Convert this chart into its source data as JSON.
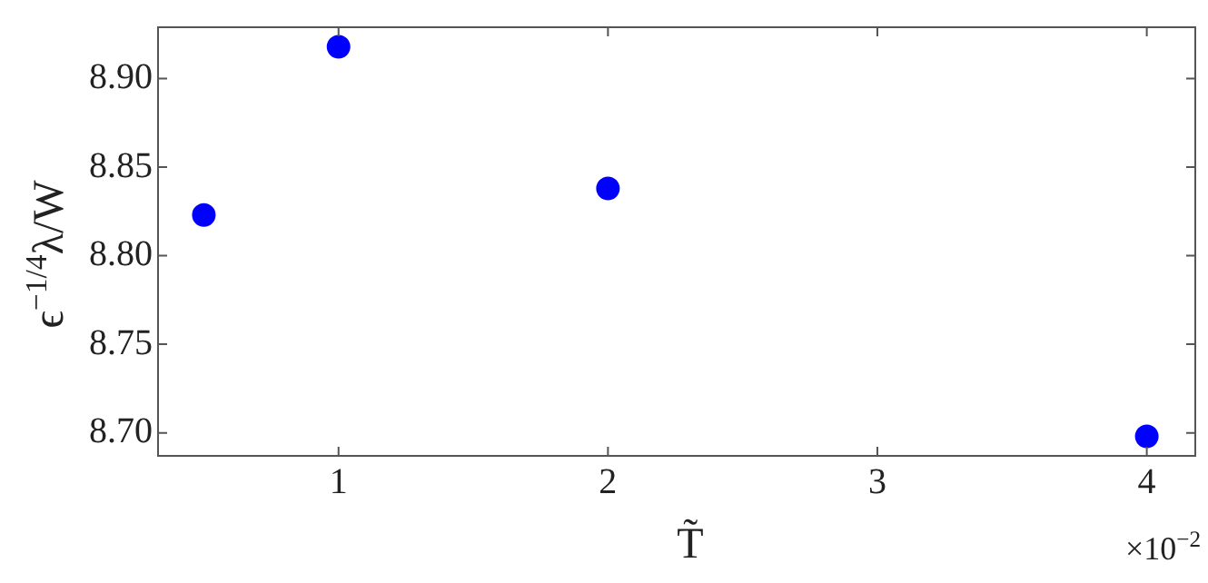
{
  "chart_data": {
    "type": "scatter",
    "xlabel": "T̃",
    "ylabel": "ϵ$^{−1/4}$λ/W",
    "annotations": [
      "×10$^{−2}$"
    ],
    "x": [
      0.5,
      1,
      2,
      4
    ],
    "series": [
      {
        "color": "#0000ff",
        "values": [
          8.823,
          8.918,
          8.838,
          8.698
        ]
      }
    ],
    "xlim": [
      0.33,
      4.18
    ],
    "xticks": [
      1,
      2,
      3,
      4
    ],
    "ylim": [
      8.687,
      8.929
    ],
    "yticks": [
      {
        "value": 8.7,
        "label": "8.70"
      },
      {
        "value": 8.75,
        "label": "8.75"
      },
      {
        "value": 8.8,
        "label": "8.80"
      },
      {
        "value": 8.85,
        "label": "8.85"
      },
      {
        "value": 8.9,
        "label": "8.90"
      }
    ],
    "grid": false,
    "legend": false,
    "marker": "circle"
  }
}
